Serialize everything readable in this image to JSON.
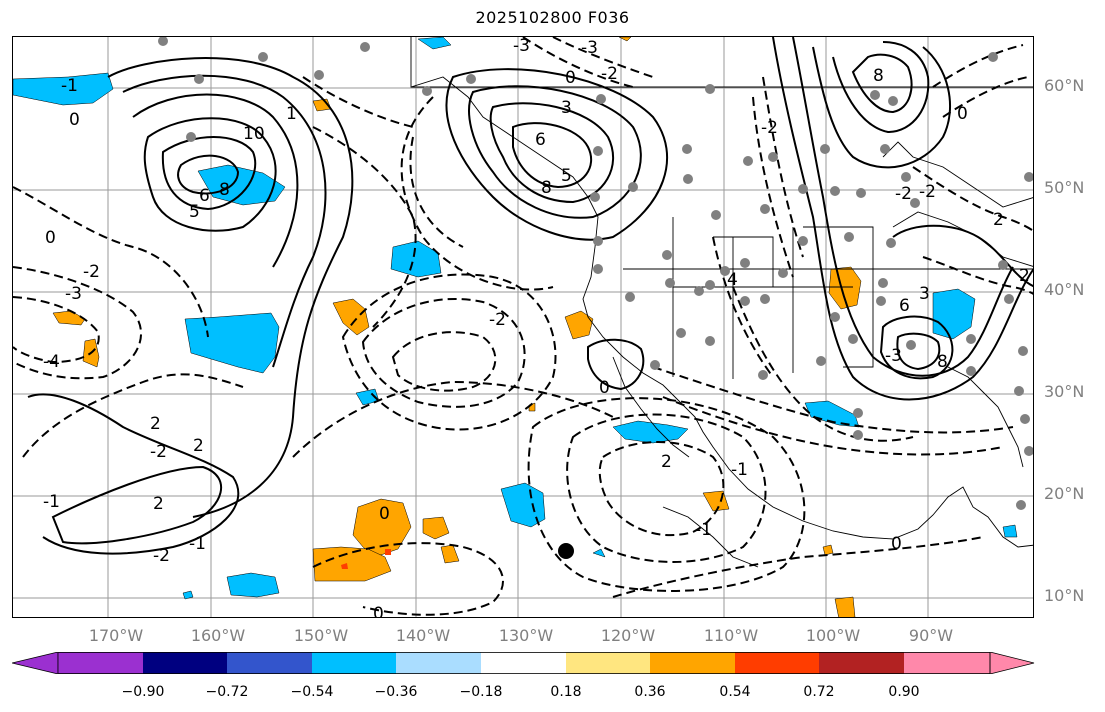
{
  "title": "2025102800 F036",
  "map": {
    "lat_labels": [
      "60°N",
      "50°N",
      "40°N",
      "30°N",
      "20°N",
      "10°N"
    ],
    "lon_labels": [
      "170°W",
      "160°W",
      "150°W",
      "140°W",
      "130°W",
      "120°W",
      "110°W",
      "100°W",
      "90°W"
    ],
    "contour_labels": [
      "-1",
      "0",
      "1",
      "10",
      "6",
      "8",
      "5",
      "0",
      "-2",
      "-3",
      "-4",
      "2",
      "2",
      "-2",
      "-1",
      "2",
      "-2",
      "-1",
      "0",
      "-2",
      "0",
      "6",
      "8",
      "5",
      "3",
      "-3",
      "-2",
      "-3",
      "0",
      "2",
      "0",
      "-1",
      "0",
      "-2",
      "-1",
      "8",
      "0",
      "-2",
      "6",
      "4",
      "-3",
      "3",
      "2",
      "8",
      "-2",
      "2"
    ]
  },
  "colorbar": {
    "tick_labels": [
      "−0.90",
      "−0.72",
      "−0.54",
      "−0.36",
      "−0.18",
      "0.18",
      "0.36",
      "0.54",
      "0.72",
      "0.90"
    ],
    "colors": [
      "#9b30d0",
      "#000080",
      "#3355cc",
      "#00bfff",
      "#aaddff",
      "#ffffff",
      "#ffe680",
      "#ffa500",
      "#ff3d00",
      "#b22222",
      "#ff88aa"
    ]
  }
}
